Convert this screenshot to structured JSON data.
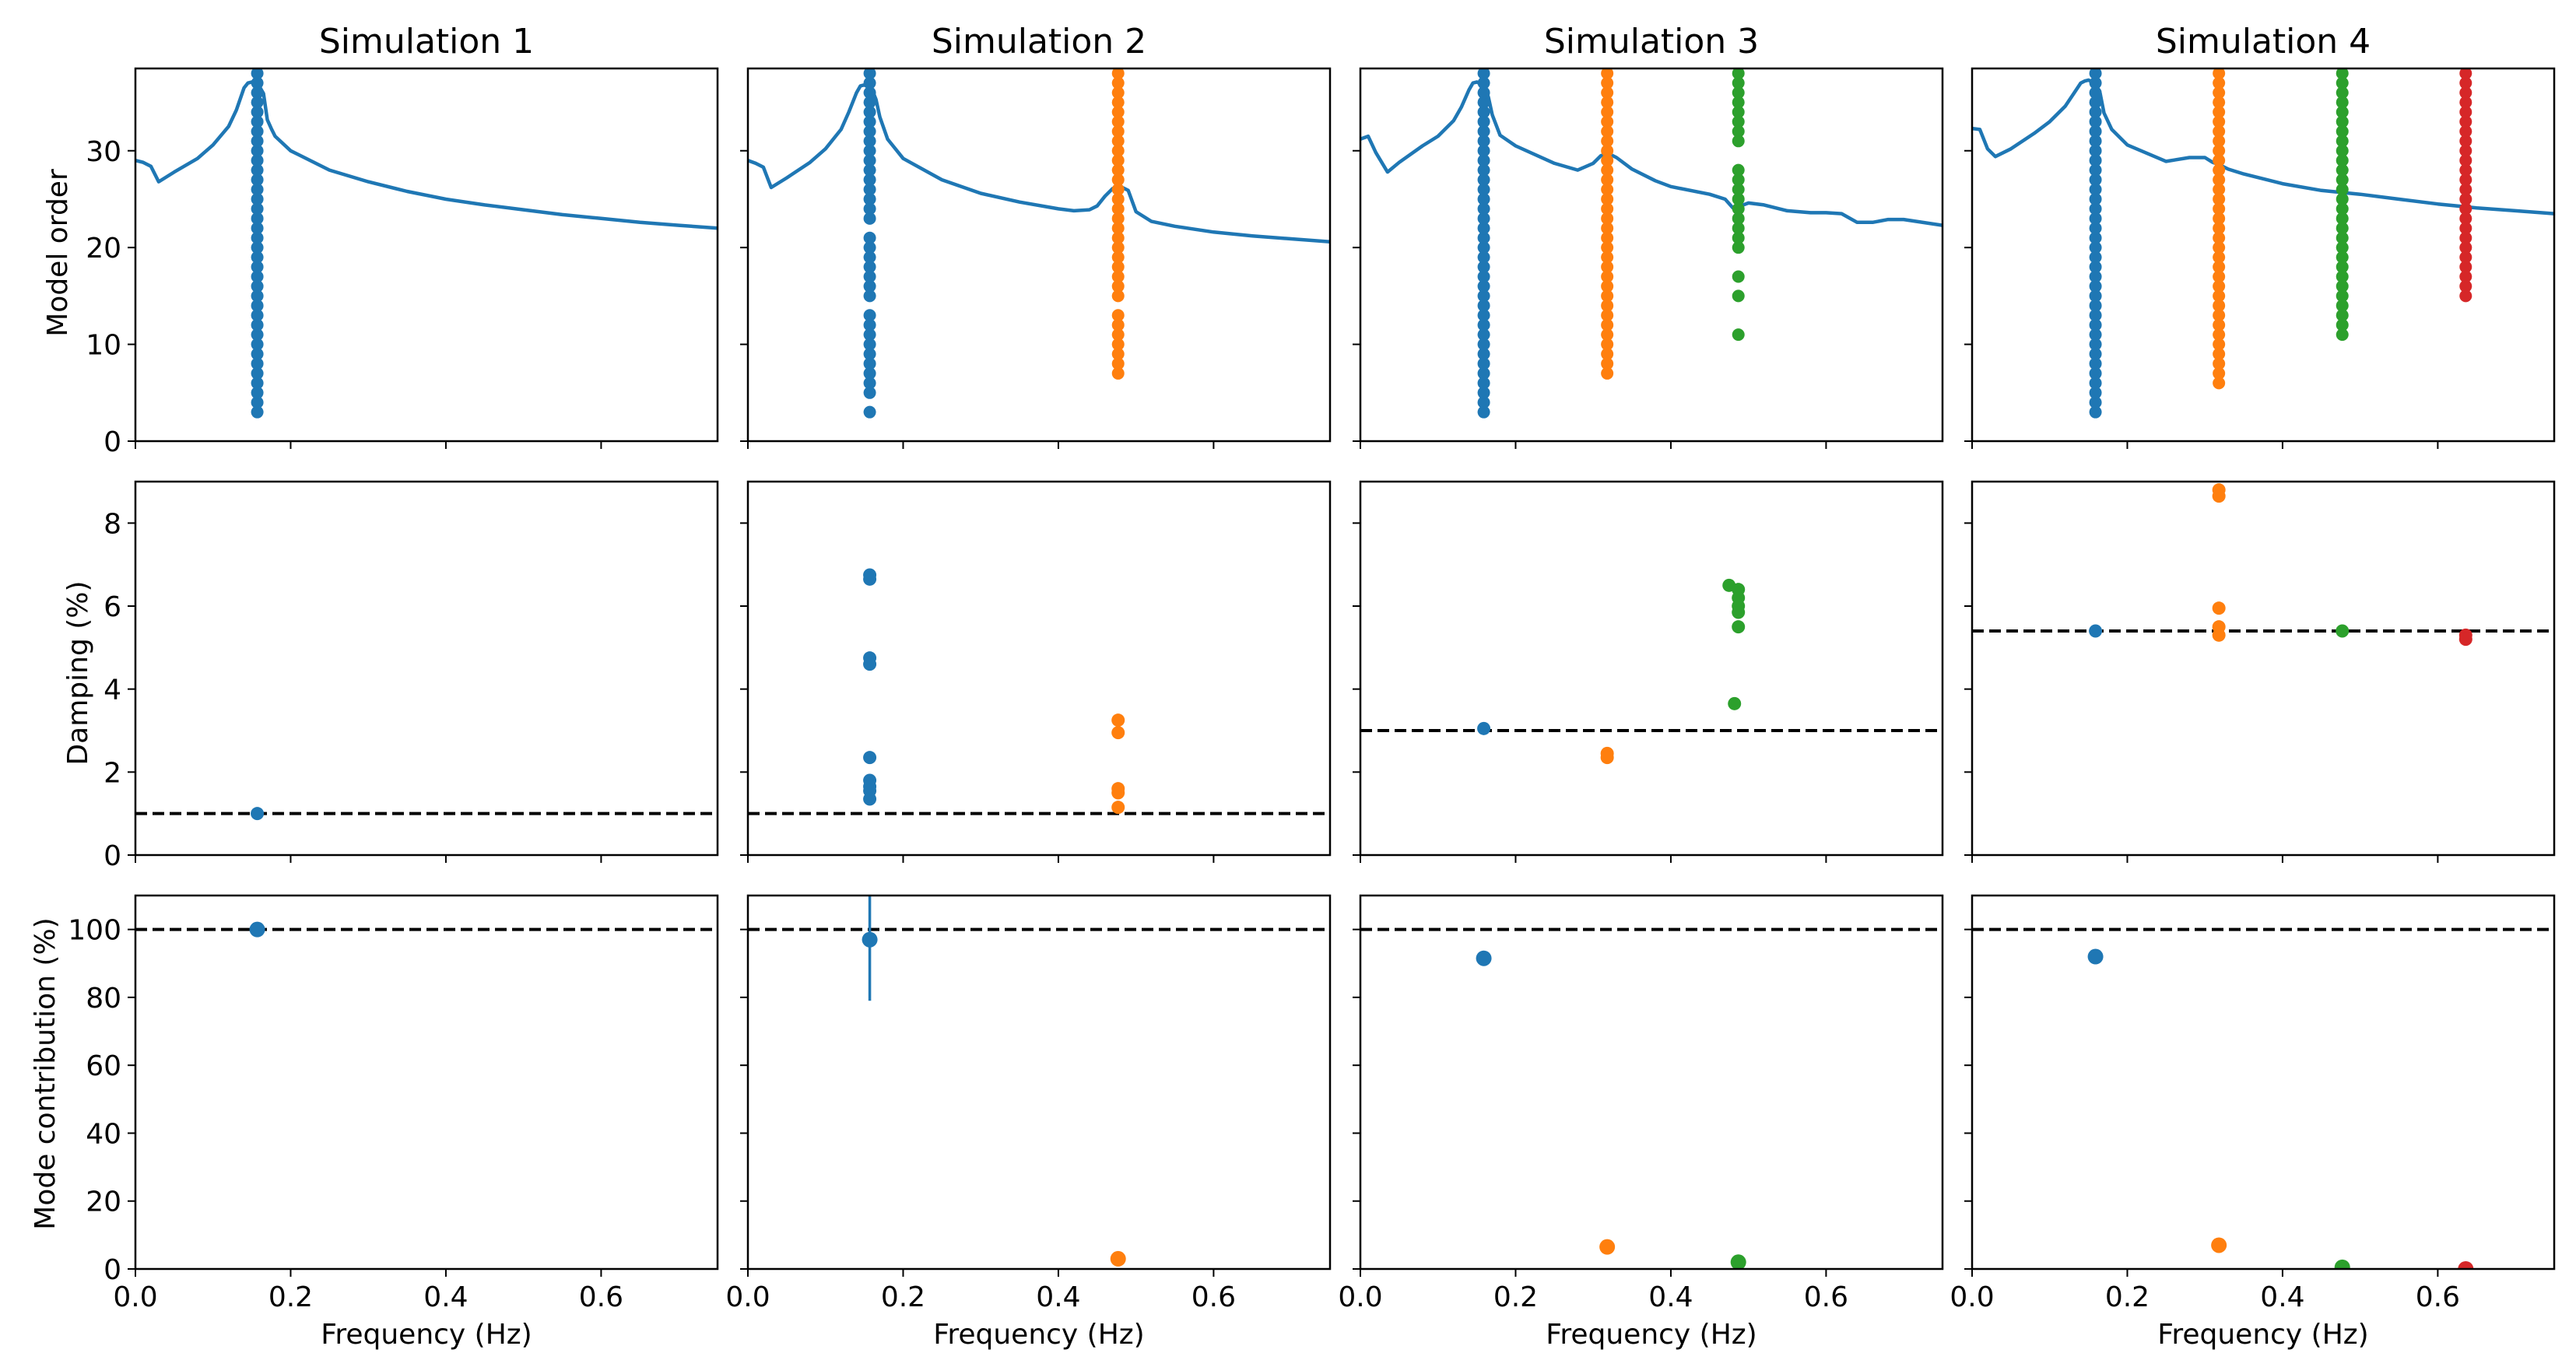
{
  "colors": {
    "c0": "#1f77b4",
    "c1": "#ff7f0e",
    "c2": "#2ca02c",
    "c3": "#d62728",
    "ref": "#000000"
  },
  "xlabel": "Frequency (Hz)",
  "row_ylabels": [
    "Model order",
    "Damping (%)",
    "Mode contribution (%)"
  ],
  "x_ticks": [
    "0.0",
    "0.2",
    "0.4",
    "0.6"
  ],
  "y_ticks": [
    [
      "0",
      "10",
      "20",
      "30"
    ],
    [
      "0",
      "2",
      "4",
      "6",
      "8"
    ],
    [
      "0",
      "20",
      "40",
      "60",
      "80",
      "100"
    ]
  ],
  "chart_data": [
    {
      "title": "Simulation 1",
      "type": "scatter",
      "xlim": [
        0,
        0.75
      ],
      "stabilization": {
        "ylim": [
          0,
          38.5
        ],
        "psd_curve": {
          "x": [
            0,
            0.01,
            0.02,
            0.03,
            0.05,
            0.08,
            0.1,
            0.12,
            0.13,
            0.14,
            0.145,
            0.15,
            0.155,
            0.16,
            0.165,
            0.17,
            0.175,
            0.18,
            0.2,
            0.25,
            0.3,
            0.35,
            0.4,
            0.45,
            0.5,
            0.55,
            0.6,
            0.65,
            0.7,
            0.75
          ],
          "y": [
            29,
            28.8,
            28.4,
            26.8,
            27.8,
            29.2,
            30.6,
            32.5,
            34.2,
            36.5,
            37.0,
            37.1,
            36.9,
            36.6,
            35.9,
            33.2,
            32.3,
            31.5,
            30,
            28,
            26.8,
            25.8,
            25,
            24.4,
            23.9,
            23.4,
            23,
            22.6,
            22.3,
            22
          ]
        },
        "series": [
          {
            "x": 0.157,
            "orders": [
              3,
              4,
              5,
              6,
              7,
              8,
              9,
              10,
              11,
              12,
              13,
              14,
              15,
              16,
              17,
              18,
              19,
              20,
              21,
              22,
              23,
              24,
              25,
              26,
              27,
              28,
              29,
              30,
              31,
              32,
              33,
              34,
              35,
              36,
              37,
              38
            ]
          }
        ]
      },
      "damping": {
        "ylim": [
          0,
          9
        ],
        "reference": 1.0,
        "points": [
          {
            "series": 0,
            "x": 0.157,
            "y": 1.0
          }
        ]
      },
      "contribution": {
        "ylim": [
          0,
          110
        ],
        "reference": 100,
        "points": [
          {
            "series": 0,
            "x": 0.157,
            "y": 100
          }
        ]
      }
    },
    {
      "title": "Simulation 2",
      "type": "scatter",
      "xlim": [
        0,
        0.75
      ],
      "stabilization": {
        "ylim": [
          0,
          38.5
        ],
        "psd_curve": {
          "x": [
            0,
            0.01,
            0.02,
            0.03,
            0.05,
            0.08,
            0.1,
            0.12,
            0.13,
            0.14,
            0.145,
            0.15,
            0.155,
            0.16,
            0.165,
            0.17,
            0.18,
            0.2,
            0.25,
            0.3,
            0.35,
            0.4,
            0.42,
            0.44,
            0.45,
            0.46,
            0.47,
            0.48,
            0.49,
            0.5,
            0.52,
            0.55,
            0.6,
            0.65,
            0.7,
            0.75
          ],
          "y": [
            29,
            28.7,
            28.3,
            26.2,
            27.2,
            28.8,
            30.2,
            32.2,
            34,
            36,
            36.7,
            36.8,
            36.6,
            36.3,
            35.3,
            33.5,
            31.2,
            29.2,
            27,
            25.6,
            24.7,
            24.0,
            23.8,
            23.9,
            24.3,
            25.3,
            26.1,
            26.3,
            25.9,
            23.7,
            22.7,
            22.2,
            21.6,
            21.2,
            20.9,
            20.6
          ]
        },
        "series": [
          {
            "x": 0.157,
            "orders": [
              3,
              5,
              6,
              7,
              8,
              9,
              10,
              11,
              12,
              13,
              15,
              16,
              17,
              18,
              19,
              20,
              21,
              23,
              24,
              25,
              26,
              27,
              28,
              29,
              30,
              31,
              32,
              33,
              34,
              35,
              36,
              37,
              38
            ]
          },
          {
            "x": 0.477,
            "orders": [
              7,
              8,
              9,
              10,
              11,
              12,
              13,
              15,
              16,
              17,
              18,
              19,
              20,
              21,
              22,
              23,
              24,
              25,
              26,
              27,
              28,
              29,
              30,
              31,
              32,
              33,
              34,
              35,
              36,
              37,
              38
            ]
          }
        ]
      },
      "damping": {
        "ylim": [
          0,
          9
        ],
        "reference": 1.0,
        "points": [
          {
            "series": 0,
            "x": 0.157,
            "y": 6.75
          },
          {
            "series": 0,
            "x": 0.157,
            "y": 6.65
          },
          {
            "series": 0,
            "x": 0.157,
            "y": 4.75
          },
          {
            "series": 0,
            "x": 0.157,
            "y": 4.6
          },
          {
            "series": 0,
            "x": 0.157,
            "y": 2.35
          },
          {
            "series": 0,
            "x": 0.157,
            "y": 1.8
          },
          {
            "series": 0,
            "x": 0.157,
            "y": 1.65
          },
          {
            "series": 0,
            "x": 0.157,
            "y": 1.55
          },
          {
            "series": 0,
            "x": 0.157,
            "y": 1.35
          },
          {
            "series": 1,
            "x": 0.477,
            "y": 3.25
          },
          {
            "series": 1,
            "x": 0.477,
            "y": 2.95
          },
          {
            "series": 1,
            "x": 0.477,
            "y": 1.6
          },
          {
            "series": 1,
            "x": 0.477,
            "y": 1.5
          },
          {
            "series": 1,
            "x": 0.477,
            "y": 1.15
          }
        ]
      },
      "contribution": {
        "ylim": [
          0,
          110
        ],
        "reference": 100,
        "points": [
          {
            "series": 0,
            "x": 0.157,
            "y": 97,
            "yerr": 18
          },
          {
            "series": 1,
            "x": 0.477,
            "y": 3
          }
        ]
      }
    },
    {
      "title": "Simulation 3",
      "type": "scatter",
      "xlim": [
        0,
        0.75
      ],
      "stabilization": {
        "ylim": [
          0,
          38.5
        ],
        "psd_curve": {
          "x": [
            0,
            0.01,
            0.02,
            0.035,
            0.05,
            0.08,
            0.1,
            0.12,
            0.13,
            0.14,
            0.145,
            0.15,
            0.155,
            0.16,
            0.165,
            0.17,
            0.18,
            0.2,
            0.25,
            0.28,
            0.3,
            0.31,
            0.32,
            0.33,
            0.35,
            0.38,
            0.4,
            0.45,
            0.47,
            0.48,
            0.49,
            0.5,
            0.52,
            0.55,
            0.58,
            0.6,
            0.62,
            0.64,
            0.66,
            0.68,
            0.7,
            0.75
          ],
          "y": [
            31.2,
            31.5,
            29.8,
            27.8,
            28.8,
            30.5,
            31.5,
            33.1,
            34.5,
            36.3,
            37,
            37.1,
            36.9,
            36.6,
            35.5,
            33.7,
            31.6,
            30.5,
            28.7,
            28.0,
            28.7,
            29.5,
            29.7,
            29.3,
            28.1,
            26.9,
            26.3,
            25.5,
            25.0,
            24.1,
            24.3,
            24.6,
            24.4,
            23.8,
            23.6,
            23.6,
            23.5,
            22.6,
            22.6,
            22.9,
            22.9,
            22.3
          ]
        },
        "series": [
          {
            "x": 0.159,
            "orders": [
              3,
              4,
              5,
              6,
              7,
              8,
              9,
              10,
              11,
              12,
              13,
              14,
              15,
              16,
              17,
              18,
              19,
              20,
              21,
              22,
              23,
              24,
              25,
              26,
              27,
              28,
              29,
              30,
              31,
              32,
              33,
              34,
              35,
              36,
              37,
              38
            ]
          },
          {
            "x": 0.318,
            "orders": [
              7,
              8,
              9,
              10,
              11,
              12,
              13,
              14,
              15,
              16,
              17,
              18,
              19,
              20,
              21,
              22,
              23,
              24,
              25,
              26,
              27,
              28,
              29,
              30,
              31,
              32,
              33,
              34,
              35,
              36,
              37,
              38
            ]
          },
          {
            "x": 0.487,
            "orders": [
              11,
              15,
              17,
              20,
              21,
              22,
              23,
              24,
              25,
              26,
              27,
              28,
              31,
              32,
              33,
              34,
              35,
              36,
              37,
              38
            ]
          }
        ]
      },
      "damping": {
        "ylim": [
          0,
          9
        ],
        "reference": 3.0,
        "points": [
          {
            "series": 0,
            "x": 0.159,
            "y": 3.05
          },
          {
            "series": 1,
            "x": 0.318,
            "y": 2.45
          },
          {
            "series": 1,
            "x": 0.318,
            "y": 2.35
          },
          {
            "series": 2,
            "x": 0.475,
            "y": 6.5
          },
          {
            "series": 2,
            "x": 0.487,
            "y": 6.4
          },
          {
            "series": 2,
            "x": 0.487,
            "y": 6.2
          },
          {
            "series": 2,
            "x": 0.487,
            "y": 6.0
          },
          {
            "series": 2,
            "x": 0.487,
            "y": 5.85
          },
          {
            "series": 2,
            "x": 0.487,
            "y": 5.5
          },
          {
            "series": 2,
            "x": 0.482,
            "y": 3.65
          }
        ]
      },
      "contribution": {
        "ylim": [
          0,
          110
        ],
        "reference": 100,
        "points": [
          {
            "series": 0,
            "x": 0.159,
            "y": 91.5
          },
          {
            "series": 1,
            "x": 0.318,
            "y": 6.5
          },
          {
            "series": 2,
            "x": 0.487,
            "y": 2
          }
        ]
      }
    },
    {
      "title": "Simulation 4",
      "type": "scatter",
      "xlim": [
        0,
        0.75
      ],
      "stabilization": {
        "ylim": [
          0,
          38.5
        ],
        "psd_curve": {
          "x": [
            0,
            0.01,
            0.02,
            0.03,
            0.05,
            0.08,
            0.1,
            0.12,
            0.13,
            0.14,
            0.145,
            0.15,
            0.155,
            0.16,
            0.165,
            0.17,
            0.18,
            0.2,
            0.25,
            0.28,
            0.3,
            0.31,
            0.32,
            0.33,
            0.35,
            0.4,
            0.45,
            0.5,
            0.55,
            0.6,
            0.65,
            0.7,
            0.75
          ],
          "y": [
            32.3,
            32.2,
            30.2,
            29.4,
            30.2,
            31.8,
            33.0,
            34.6,
            35.8,
            37.0,
            37.2,
            37.3,
            37.1,
            36.8,
            35.9,
            33.9,
            32.2,
            30.6,
            28.9,
            29.3,
            29.3,
            28.8,
            28.5,
            28.1,
            27.6,
            26.6,
            25.9,
            25.5,
            25.0,
            24.5,
            24.1,
            23.8,
            23.5
          ]
        },
        "series": [
          {
            "x": 0.159,
            "orders": [
              3,
              4,
              5,
              6,
              7,
              8,
              9,
              10,
              11,
              12,
              13,
              14,
              15,
              16,
              17,
              18,
              19,
              20,
              21,
              22,
              23,
              24,
              25,
              26,
              27,
              28,
              29,
              30,
              31,
              32,
              33,
              34,
              35,
              36,
              37,
              38
            ]
          },
          {
            "x": 0.318,
            "orders": [
              6,
              7,
              8,
              9,
              10,
              11,
              12,
              13,
              14,
              15,
              16,
              17,
              18,
              19,
              20,
              21,
              22,
              23,
              24,
              25,
              26,
              27,
              28,
              29,
              30,
              31,
              32,
              33,
              34,
              35,
              36,
              37,
              38
            ]
          },
          {
            "x": 0.477,
            "orders": [
              11,
              12,
              13,
              14,
              15,
              16,
              17,
              18,
              19,
              20,
              21,
              22,
              23,
              24,
              25,
              26,
              27,
              28,
              29,
              30,
              31,
              32,
              33,
              34,
              35,
              36,
              37,
              38
            ]
          },
          {
            "x": 0.636,
            "orders": [
              15,
              16,
              17,
              18,
              19,
              20,
              21,
              22,
              23,
              24,
              25,
              26,
              27,
              28,
              29,
              30,
              31,
              32,
              33,
              34,
              35,
              36,
              37,
              38
            ]
          }
        ]
      },
      "damping": {
        "ylim": [
          0,
          9
        ],
        "reference": 5.4,
        "points": [
          {
            "series": 0,
            "x": 0.159,
            "y": 5.4
          },
          {
            "series": 1,
            "x": 0.318,
            "y": 8.8
          },
          {
            "series": 1,
            "x": 0.318,
            "y": 8.65
          },
          {
            "series": 1,
            "x": 0.318,
            "y": 5.95
          },
          {
            "series": 1,
            "x": 0.318,
            "y": 5.5
          },
          {
            "series": 1,
            "x": 0.318,
            "y": 5.3
          },
          {
            "series": 2,
            "x": 0.477,
            "y": 5.4
          },
          {
            "series": 3,
            "x": 0.636,
            "y": 5.3
          },
          {
            "series": 3,
            "x": 0.636,
            "y": 5.2
          }
        ]
      },
      "contribution": {
        "ylim": [
          0,
          110
        ],
        "reference": 100,
        "points": [
          {
            "series": 0,
            "x": 0.159,
            "y": 92
          },
          {
            "series": 1,
            "x": 0.318,
            "y": 7
          },
          {
            "series": 2,
            "x": 0.477,
            "y": 0.5
          },
          {
            "series": 3,
            "x": 0.636,
            "y": 0
          }
        ]
      }
    }
  ]
}
